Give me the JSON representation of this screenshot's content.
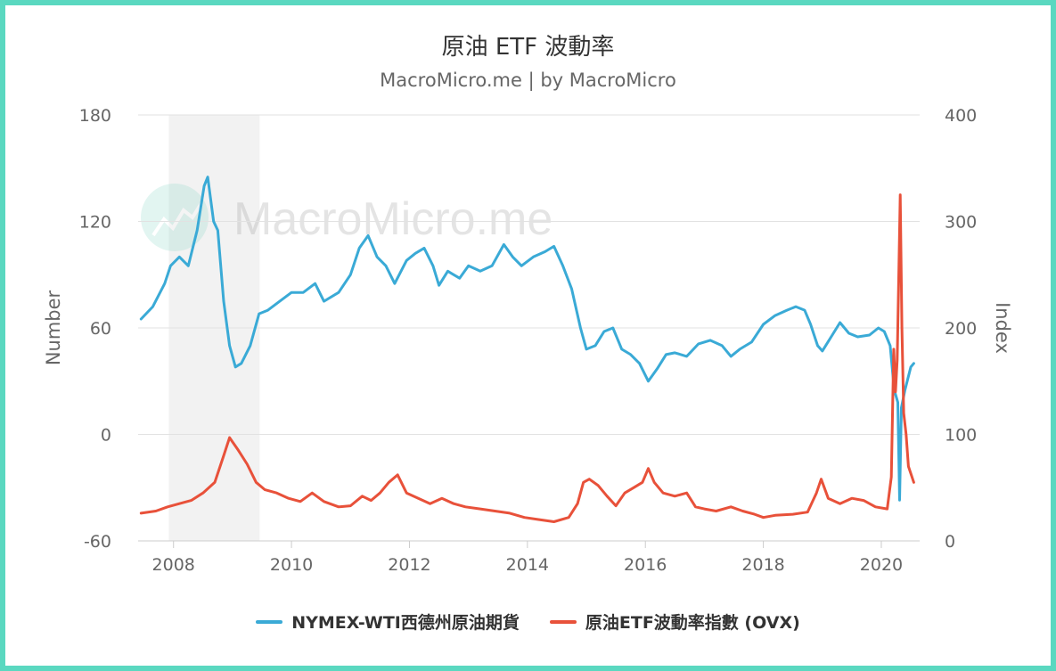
{
  "chart_data": {
    "type": "line",
    "title": "原油 ETF 波動率",
    "subtitle": "MacroMicro.me | by MacroMicro",
    "watermark": "MacroMicro.me",
    "x_ticks": [
      "2008",
      "2010",
      "2012",
      "2014",
      "2016",
      "2018",
      "2020"
    ],
    "x_range": [
      2007.4,
      2020.65
    ],
    "y_left": {
      "label": "Number",
      "ylim": [
        -60,
        180
      ],
      "ticks": [
        -60,
        0,
        60,
        120,
        180
      ],
      "tick_labels": [
        "-60",
        "0",
        "60",
        "120",
        "180"
      ]
    },
    "y_right": {
      "label": "Index",
      "ylim": [
        0,
        400
      ],
      "ticks": [
        0,
        100,
        200,
        300,
        400
      ],
      "tick_labels": [
        "0",
        "100",
        "200",
        "300",
        "400"
      ]
    },
    "grid": true,
    "legend_position": "bottom",
    "recession_band": [
      2007.92,
      2009.46
    ],
    "series": [
      {
        "name": "NYMEX-WTI西德州原油期貨",
        "axis": "left",
        "color": "#3aaad6",
        "points": [
          [
            2007.45,
            65
          ],
          [
            2007.65,
            72
          ],
          [
            2007.85,
            85
          ],
          [
            2007.95,
            95
          ],
          [
            2008.1,
            100
          ],
          [
            2008.25,
            95
          ],
          [
            2008.4,
            115
          ],
          [
            2008.52,
            140
          ],
          [
            2008.58,
            145
          ],
          [
            2008.68,
            120
          ],
          [
            2008.75,
            115
          ],
          [
            2008.85,
            75
          ],
          [
            2008.95,
            50
          ],
          [
            2009.05,
            38
          ],
          [
            2009.15,
            40
          ],
          [
            2009.3,
            50
          ],
          [
            2009.45,
            68
          ],
          [
            2009.6,
            70
          ],
          [
            2009.8,
            75
          ],
          [
            2010.0,
            80
          ],
          [
            2010.2,
            80
          ],
          [
            2010.4,
            85
          ],
          [
            2010.55,
            75
          ],
          [
            2010.8,
            80
          ],
          [
            2011.0,
            90
          ],
          [
            2011.15,
            105
          ],
          [
            2011.3,
            112
          ],
          [
            2011.45,
            100
          ],
          [
            2011.6,
            95
          ],
          [
            2011.75,
            85
          ],
          [
            2011.95,
            98
          ],
          [
            2012.1,
            102
          ],
          [
            2012.25,
            105
          ],
          [
            2012.4,
            95
          ],
          [
            2012.5,
            84
          ],
          [
            2012.65,
            92
          ],
          [
            2012.85,
            88
          ],
          [
            2013.0,
            95
          ],
          [
            2013.2,
            92
          ],
          [
            2013.4,
            95
          ],
          [
            2013.6,
            107
          ],
          [
            2013.75,
            100
          ],
          [
            2013.9,
            95
          ],
          [
            2014.1,
            100
          ],
          [
            2014.3,
            103
          ],
          [
            2014.45,
            106
          ],
          [
            2014.6,
            95
          ],
          [
            2014.75,
            82
          ],
          [
            2014.9,
            60
          ],
          [
            2015.0,
            48
          ],
          [
            2015.15,
            50
          ],
          [
            2015.3,
            58
          ],
          [
            2015.45,
            60
          ],
          [
            2015.6,
            48
          ],
          [
            2015.75,
            45
          ],
          [
            2015.9,
            40
          ],
          [
            2016.05,
            30
          ],
          [
            2016.2,
            37
          ],
          [
            2016.35,
            45
          ],
          [
            2016.5,
            46
          ],
          [
            2016.7,
            44
          ],
          [
            2016.9,
            51
          ],
          [
            2017.1,
            53
          ],
          [
            2017.3,
            50
          ],
          [
            2017.45,
            44
          ],
          [
            2017.6,
            48
          ],
          [
            2017.8,
            52
          ],
          [
            2018.0,
            62
          ],
          [
            2018.2,
            67
          ],
          [
            2018.4,
            70
          ],
          [
            2018.55,
            72
          ],
          [
            2018.7,
            70
          ],
          [
            2018.8,
            62
          ],
          [
            2018.92,
            50
          ],
          [
            2019.0,
            47
          ],
          [
            2019.15,
            55
          ],
          [
            2019.3,
            63
          ],
          [
            2019.45,
            57
          ],
          [
            2019.6,
            55
          ],
          [
            2019.8,
            56
          ],
          [
            2019.95,
            60
          ],
          [
            2020.05,
            58
          ],
          [
            2020.15,
            50
          ],
          [
            2020.22,
            25
          ],
          [
            2020.28,
            18
          ],
          [
            2020.31,
            -37
          ],
          [
            2020.34,
            15
          ],
          [
            2020.4,
            25
          ],
          [
            2020.5,
            38
          ],
          [
            2020.55,
            40
          ]
        ]
      },
      {
        "name": "原油ETF波動率指數 (OVX)",
        "axis": "right",
        "color": "#e8513a",
        "points": [
          [
            2007.45,
            26
          ],
          [
            2007.7,
            28
          ],
          [
            2007.9,
            32
          ],
          [
            2008.1,
            35
          ],
          [
            2008.3,
            38
          ],
          [
            2008.5,
            45
          ],
          [
            2008.7,
            55
          ],
          [
            2008.85,
            80
          ],
          [
            2008.95,
            97
          ],
          [
            2009.1,
            85
          ],
          [
            2009.25,
            72
          ],
          [
            2009.4,
            55
          ],
          [
            2009.55,
            48
          ],
          [
            2009.75,
            45
          ],
          [
            2009.95,
            40
          ],
          [
            2010.15,
            37
          ],
          [
            2010.35,
            45
          ],
          [
            2010.55,
            37
          ],
          [
            2010.8,
            32
          ],
          [
            2011.0,
            33
          ],
          [
            2011.2,
            42
          ],
          [
            2011.35,
            38
          ],
          [
            2011.5,
            45
          ],
          [
            2011.65,
            55
          ],
          [
            2011.8,
            62
          ],
          [
            2011.95,
            45
          ],
          [
            2012.15,
            40
          ],
          [
            2012.35,
            35
          ],
          [
            2012.55,
            40
          ],
          [
            2012.75,
            35
          ],
          [
            2012.95,
            32
          ],
          [
            2013.2,
            30
          ],
          [
            2013.45,
            28
          ],
          [
            2013.7,
            26
          ],
          [
            2013.95,
            22
          ],
          [
            2014.2,
            20
          ],
          [
            2014.45,
            18
          ],
          [
            2014.7,
            22
          ],
          [
            2014.85,
            35
          ],
          [
            2014.95,
            55
          ],
          [
            2015.05,
            58
          ],
          [
            2015.2,
            52
          ],
          [
            2015.35,
            42
          ],
          [
            2015.5,
            33
          ],
          [
            2015.65,
            45
          ],
          [
            2015.8,
            50
          ],
          [
            2015.95,
            55
          ],
          [
            2016.05,
            68
          ],
          [
            2016.15,
            55
          ],
          [
            2016.3,
            45
          ],
          [
            2016.5,
            42
          ],
          [
            2016.7,
            45
          ],
          [
            2016.85,
            32
          ],
          [
            2017.0,
            30
          ],
          [
            2017.2,
            28
          ],
          [
            2017.45,
            32
          ],
          [
            2017.65,
            28
          ],
          [
            2017.85,
            25
          ],
          [
            2018.0,
            22
          ],
          [
            2018.2,
            24
          ],
          [
            2018.5,
            25
          ],
          [
            2018.75,
            27
          ],
          [
            2018.9,
            45
          ],
          [
            2018.98,
            58
          ],
          [
            2019.1,
            40
          ],
          [
            2019.3,
            35
          ],
          [
            2019.5,
            40
          ],
          [
            2019.7,
            38
          ],
          [
            2019.9,
            32
          ],
          [
            2020.1,
            30
          ],
          [
            2020.17,
            60
          ],
          [
            2020.21,
            180
          ],
          [
            2020.24,
            140
          ],
          [
            2020.27,
            170
          ],
          [
            2020.3,
            260
          ],
          [
            2020.32,
            325
          ],
          [
            2020.35,
            200
          ],
          [
            2020.38,
            120
          ],
          [
            2020.42,
            100
          ],
          [
            2020.46,
            70
          ],
          [
            2020.52,
            60
          ],
          [
            2020.55,
            55
          ]
        ]
      }
    ]
  }
}
